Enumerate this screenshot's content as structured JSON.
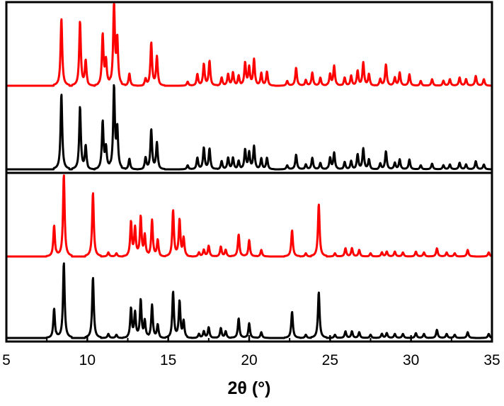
{
  "chart_data": {
    "type": "line",
    "title": "",
    "xlabel": "2θ (°)",
    "ylabel": "",
    "xlim": [
      5,
      35
    ],
    "xticks": [
      5,
      10,
      15,
      20,
      25,
      30,
      35
    ],
    "grid": false,
    "legend": "none",
    "panels": [
      {
        "name": "top",
        "traces": [
          {
            "color": "#ff0000",
            "baseline": 0.05,
            "peaks": [
              [
                8.4,
                0.82
              ],
              [
                9.55,
                0.78
              ],
              [
                9.9,
                0.3
              ],
              [
                10.95,
                0.62
              ],
              [
                11.15,
                0.3
              ],
              [
                11.65,
                1.0
              ],
              [
                11.85,
                0.55
              ],
              [
                12.6,
                0.15
              ],
              [
                13.6,
                0.08
              ],
              [
                13.95,
                0.52
              ],
              [
                14.3,
                0.35
              ],
              [
                16.2,
                0.05
              ],
              [
                16.8,
                0.14
              ],
              [
                17.2,
                0.26
              ],
              [
                17.55,
                0.3
              ],
              [
                18.3,
                0.1
              ],
              [
                18.7,
                0.14
              ],
              [
                19.0,
                0.16
              ],
              [
                19.35,
                0.12
              ],
              [
                19.75,
                0.28
              ],
              [
                20.0,
                0.22
              ],
              [
                20.3,
                0.32
              ],
              [
                20.75,
                0.15
              ],
              [
                21.1,
                0.17
              ],
              [
                22.35,
                0.06
              ],
              [
                22.9,
                0.22
              ],
              [
                23.5,
                0.07
              ],
              [
                23.9,
                0.16
              ],
              [
                24.4,
                0.1
              ],
              [
                25.0,
                0.14
              ],
              [
                25.25,
                0.24
              ],
              [
                25.9,
                0.1
              ],
              [
                26.3,
                0.12
              ],
              [
                26.7,
                0.18
              ],
              [
                27.05,
                0.28
              ],
              [
                27.4,
                0.14
              ],
              [
                28.1,
                0.08
              ],
              [
                28.45,
                0.26
              ],
              [
                29.0,
                0.1
              ],
              [
                29.3,
                0.16
              ],
              [
                29.9,
                0.14
              ],
              [
                30.6,
                0.06
              ],
              [
                31.3,
                0.08
              ],
              [
                32.0,
                0.06
              ],
              [
                32.4,
                0.08
              ],
              [
                33.0,
                0.1
              ],
              [
                33.4,
                0.08
              ],
              [
                34.0,
                0.12
              ],
              [
                34.5,
                0.08
              ]
            ]
          },
          {
            "color": "#000000",
            "baseline": 0.0,
            "peaks": [
              [
                8.4,
                0.92
              ],
              [
                9.55,
                0.76
              ],
              [
                9.9,
                0.28
              ],
              [
                10.95,
                0.58
              ],
              [
                11.15,
                0.26
              ],
              [
                11.65,
                1.0
              ],
              [
                11.85,
                0.48
              ],
              [
                12.6,
                0.13
              ],
              [
                13.6,
                0.14
              ],
              [
                13.95,
                0.48
              ],
              [
                14.3,
                0.32
              ],
              [
                16.2,
                0.05
              ],
              [
                16.8,
                0.14
              ],
              [
                17.2,
                0.26
              ],
              [
                17.55,
                0.25
              ],
              [
                18.3,
                0.1
              ],
              [
                18.7,
                0.14
              ],
              [
                19.0,
                0.14
              ],
              [
                19.35,
                0.1
              ],
              [
                19.75,
                0.24
              ],
              [
                20.0,
                0.2
              ],
              [
                20.3,
                0.28
              ],
              [
                20.75,
                0.13
              ],
              [
                21.1,
                0.14
              ],
              [
                22.35,
                0.05
              ],
              [
                22.9,
                0.18
              ],
              [
                23.5,
                0.06
              ],
              [
                23.9,
                0.14
              ],
              [
                24.4,
                0.08
              ],
              [
                25.0,
                0.14
              ],
              [
                25.25,
                0.2
              ],
              [
                25.9,
                0.09
              ],
              [
                26.3,
                0.1
              ],
              [
                26.7,
                0.18
              ],
              [
                27.05,
                0.25
              ],
              [
                27.4,
                0.12
              ],
              [
                28.1,
                0.07
              ],
              [
                28.45,
                0.22
              ],
              [
                29.0,
                0.08
              ],
              [
                29.3,
                0.12
              ],
              [
                29.9,
                0.12
              ],
              [
                30.6,
                0.05
              ],
              [
                31.3,
                0.07
              ],
              [
                32.0,
                0.05
              ],
              [
                32.4,
                0.06
              ],
              [
                33.0,
                0.08
              ],
              [
                33.4,
                0.06
              ],
              [
                34.0,
                0.1
              ],
              [
                34.5,
                0.06
              ]
            ]
          }
        ]
      },
      {
        "name": "bottom",
        "traces": [
          {
            "color": "#ff0000",
            "baseline": 0.05,
            "peaks": [
              [
                7.95,
                0.38
              ],
              [
                8.55,
                1.0
              ],
              [
                10.35,
                0.78
              ],
              [
                11.3,
                0.05
              ],
              [
                11.8,
                0.04
              ],
              [
                12.7,
                0.42
              ],
              [
                12.95,
                0.34
              ],
              [
                13.3,
                0.48
              ],
              [
                13.55,
                0.25
              ],
              [
                14.0,
                0.44
              ],
              [
                14.35,
                0.2
              ],
              [
                15.3,
                0.56
              ],
              [
                15.7,
                0.44
              ],
              [
                15.95,
                0.22
              ],
              [
                16.9,
                0.05
              ],
              [
                17.2,
                0.08
              ],
              [
                17.5,
                0.13
              ],
              [
                18.25,
                0.12
              ],
              [
                18.55,
                0.08
              ],
              [
                19.35,
                0.27
              ],
              [
                20.0,
                0.2
              ],
              [
                20.75,
                0.08
              ],
              [
                22.65,
                0.32
              ],
              [
                23.5,
                0.04
              ],
              [
                24.3,
                0.64
              ],
              [
                25.3,
                0.04
              ],
              [
                25.95,
                0.1
              ],
              [
                26.35,
                0.1
              ],
              [
                26.8,
                0.08
              ],
              [
                27.5,
                0.04
              ],
              [
                28.2,
                0.05
              ],
              [
                28.5,
                0.06
              ],
              [
                29.0,
                0.06
              ],
              [
                29.5,
                0.05
              ],
              [
                30.3,
                0.06
              ],
              [
                30.8,
                0.05
              ],
              [
                31.6,
                0.1
              ],
              [
                32.2,
                0.05
              ],
              [
                32.7,
                0.04
              ],
              [
                33.5,
                0.08
              ],
              [
                34.8,
                0.05
              ]
            ]
          },
          {
            "color": "#000000",
            "baseline": 0.0,
            "peaks": [
              [
                7.95,
                0.36
              ],
              [
                8.55,
                0.92
              ],
              [
                10.35,
                0.74
              ],
              [
                11.3,
                0.05
              ],
              [
                11.8,
                0.04
              ],
              [
                12.7,
                0.36
              ],
              [
                12.95,
                0.3
              ],
              [
                13.3,
                0.46
              ],
              [
                13.55,
                0.2
              ],
              [
                14.0,
                0.4
              ],
              [
                14.35,
                0.16
              ],
              [
                15.3,
                0.56
              ],
              [
                15.7,
                0.44
              ],
              [
                15.95,
                0.2
              ],
              [
                16.9,
                0.05
              ],
              [
                17.2,
                0.08
              ],
              [
                17.5,
                0.13
              ],
              [
                18.25,
                0.12
              ],
              [
                18.55,
                0.08
              ],
              [
                19.35,
                0.24
              ],
              [
                20.0,
                0.18
              ],
              [
                20.75,
                0.07
              ],
              [
                22.65,
                0.32
              ],
              [
                23.5,
                0.04
              ],
              [
                24.3,
                0.56
              ],
              [
                25.3,
                0.04
              ],
              [
                25.95,
                0.08
              ],
              [
                26.35,
                0.08
              ],
              [
                26.8,
                0.07
              ],
              [
                27.5,
                0.04
              ],
              [
                28.2,
                0.05
              ],
              [
                28.5,
                0.06
              ],
              [
                29.0,
                0.05
              ],
              [
                29.5,
                0.05
              ],
              [
                30.3,
                0.06
              ],
              [
                30.8,
                0.05
              ],
              [
                31.6,
                0.1
              ],
              [
                32.2,
                0.05
              ],
              [
                32.7,
                0.04
              ],
              [
                33.5,
                0.07
              ],
              [
                34.8,
                0.05
              ]
            ]
          }
        ]
      }
    ]
  }
}
